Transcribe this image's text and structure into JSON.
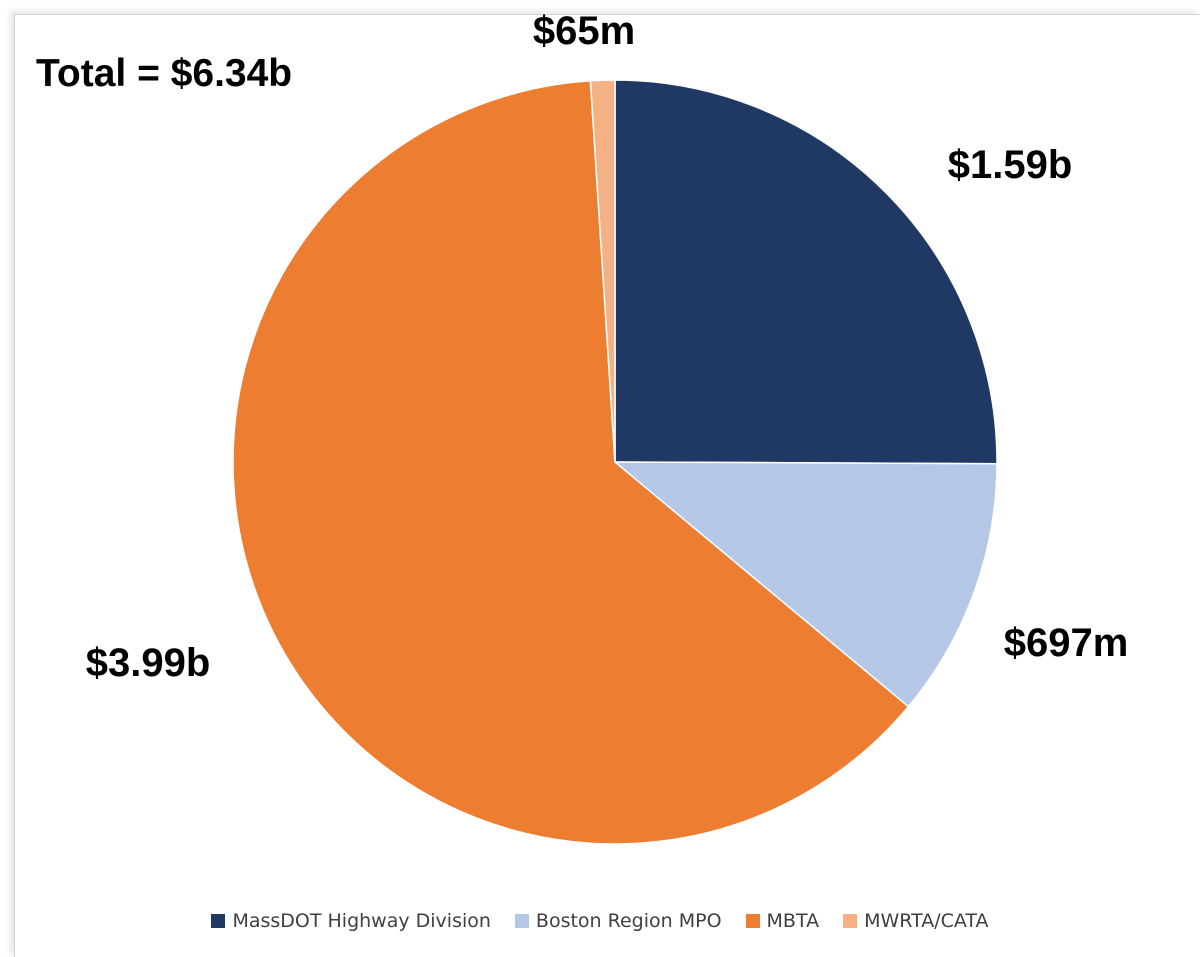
{
  "chart_data": {
    "type": "pie",
    "total_label": "Total = $6.34b",
    "slices": [
      {
        "name": "MassDOT Highway Division",
        "value": 1.59,
        "label": "$1.59b",
        "color": "#203864"
      },
      {
        "name": "Boston Region MPO",
        "value": 0.697,
        "label": "$697m",
        "color": "#b4c7e7"
      },
      {
        "name": "MBTA",
        "value": 3.99,
        "label": "$3.99b",
        "color": "#ed7d31"
      },
      {
        "name": "MWRTA/CATA",
        "value": 0.065,
        "label": "$65m",
        "color": "#f4b183"
      }
    ],
    "start_angle": "12 o'clock",
    "direction": "clockwise",
    "legend_position": "bottom"
  }
}
